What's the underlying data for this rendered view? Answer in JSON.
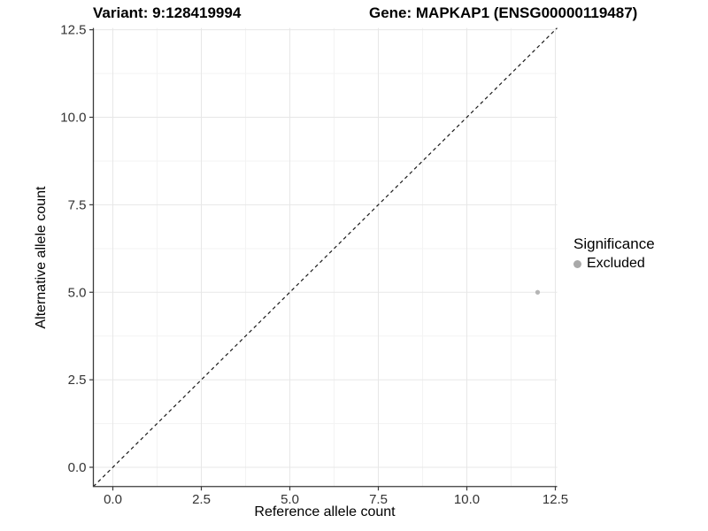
{
  "header": {
    "title_left": "Variant: 9:128419994",
    "title_right": "Gene: MAPKAP1 (ENSG00000119487)"
  },
  "legend": {
    "title": "Significance",
    "items": [
      {
        "label": "Excluded",
        "marker": "circle-icon",
        "color": "#a9a9a9"
      }
    ]
  },
  "chart_data": {
    "type": "scatter",
    "title": "Variant: 9:128419994   Gene: MAPKAP1 (ENSG00000119487)",
    "xlabel": "Reference allele count",
    "ylabel": "Alternative allele count",
    "xlim": [
      -0.55,
      12.55
    ],
    "ylim": [
      -0.55,
      12.55
    ],
    "x_ticks": [
      {
        "value": 0,
        "label": "0.0"
      },
      {
        "value": 2.5,
        "label": "2.5"
      },
      {
        "value": 5,
        "label": "5.0"
      },
      {
        "value": 7.5,
        "label": "7.5"
      },
      {
        "value": 10,
        "label": "10.0"
      },
      {
        "value": 12.5,
        "label": "12.5"
      }
    ],
    "y_ticks": [
      {
        "value": 0,
        "label": "0.0"
      },
      {
        "value": 2.5,
        "label": "2.5"
      },
      {
        "value": 5,
        "label": "5.0"
      },
      {
        "value": 7.5,
        "label": "7.5"
      },
      {
        "value": 10,
        "label": "10.0"
      },
      {
        "value": 12.5,
        "label": "12.5"
      }
    ],
    "x_minor_ticks": [
      1.25,
      3.75,
      6.25,
      8.75,
      11.25
    ],
    "y_minor_ticks": [
      1.25,
      3.75,
      6.25,
      8.75,
      11.25
    ],
    "grid": {
      "major_color": "#e7e7e7",
      "minor_color": "#f3f3f3"
    },
    "axis_color": "#3a3a3a",
    "reference_line": {
      "equation": "y = x",
      "style": "dashed",
      "color": "#1a1a1a"
    },
    "series": [
      {
        "name": "Excluded",
        "color": "#b5b5b5",
        "points": [
          {
            "x": 12,
            "y": 5
          }
        ]
      }
    ],
    "legend_position": "right"
  }
}
